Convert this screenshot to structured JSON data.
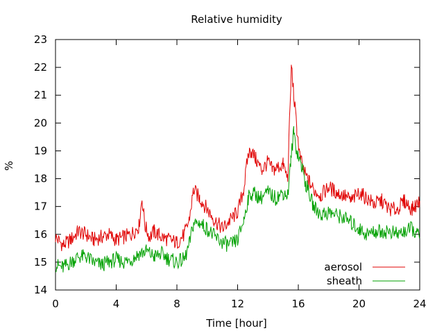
{
  "chart_data": {
    "type": "line",
    "title": "Relative humidity",
    "xlabel": "Time [hour]",
    "ylabel": "%",
    "xlim": [
      0,
      24
    ],
    "ylim": [
      14,
      23
    ],
    "xticks": [
      0,
      4,
      8,
      12,
      16,
      20,
      24
    ],
    "yticks": [
      14,
      15,
      16,
      17,
      18,
      19,
      20,
      21,
      22,
      23
    ],
    "grid": false,
    "legend_position": "bottom-right",
    "series": [
      {
        "name": "aerosol",
        "color": "#e00000",
        "x": [
          0,
          0.5,
          1,
          1.5,
          2,
          2.5,
          3,
          3.5,
          4,
          4.5,
          5,
          5.5,
          5.7,
          5.9,
          6.2,
          6.5,
          7,
          7.5,
          8,
          8.5,
          8.8,
          9.1,
          9.5,
          10,
          10.5,
          11,
          11.5,
          12,
          12.4,
          12.7,
          12.9,
          13.2,
          13.6,
          14,
          14.3,
          14.6,
          15,
          15.3,
          15.55,
          15.7,
          15.9,
          16.1,
          16.4,
          16.7,
          17,
          17.5,
          18,
          18.5,
          19,
          19.5,
          20,
          20.5,
          21,
          21.5,
          22,
          22.5,
          23,
          23.5,
          24
        ],
        "y": [
          15.9,
          15.6,
          15.8,
          16.1,
          16.0,
          15.8,
          15.9,
          16.0,
          15.8,
          15.9,
          16.0,
          16.3,
          17.3,
          16.3,
          15.9,
          16.1,
          15.9,
          15.8,
          15.7,
          16.0,
          16.5,
          17.6,
          17.3,
          16.9,
          16.5,
          16.2,
          16.5,
          16.8,
          17.6,
          18.9,
          19.0,
          18.7,
          18.3,
          18.6,
          18.3,
          18.4,
          18.5,
          18.0,
          22.1,
          21.0,
          19.8,
          18.8,
          18.2,
          17.9,
          17.6,
          17.4,
          17.7,
          17.5,
          17.4,
          17.2,
          17.5,
          17.3,
          17.1,
          17.2,
          16.9,
          16.9,
          17.2,
          16.9,
          17.2
        ]
      },
      {
        "name": "sheath",
        "color": "#00a000",
        "x": [
          0,
          0.5,
          1,
          1.5,
          2,
          2.5,
          3,
          3.5,
          4,
          4.5,
          5,
          5.5,
          6,
          6.5,
          7,
          7.5,
          8,
          8.5,
          8.8,
          9.1,
          9.5,
          10,
          10.5,
          11,
          11.5,
          12,
          12.4,
          12.7,
          13,
          13.5,
          14,
          14.5,
          15,
          15.3,
          15.5,
          15.7,
          15.9,
          16.2,
          16.5,
          17,
          17.5,
          18,
          18.5,
          19,
          19.5,
          20,
          20.5,
          21,
          21.5,
          22,
          22.5,
          23,
          23.5,
          24
        ],
        "y": [
          14.9,
          14.8,
          15.0,
          15.2,
          15.2,
          15.0,
          14.9,
          15.0,
          15.1,
          15.0,
          15.1,
          15.3,
          15.4,
          15.2,
          15.3,
          15.1,
          15.0,
          15.1,
          15.6,
          16.4,
          16.4,
          16.2,
          15.9,
          15.7,
          15.6,
          15.8,
          16.5,
          17.3,
          17.5,
          17.3,
          17.5,
          17.3,
          17.5,
          17.4,
          18.6,
          19.7,
          19.0,
          18.5,
          17.8,
          17.0,
          16.7,
          16.8,
          16.7,
          16.6,
          16.4,
          16.2,
          16.0,
          16.1,
          16.1,
          16.1,
          16.0,
          16.1,
          16.2,
          15.9
        ]
      }
    ]
  }
}
